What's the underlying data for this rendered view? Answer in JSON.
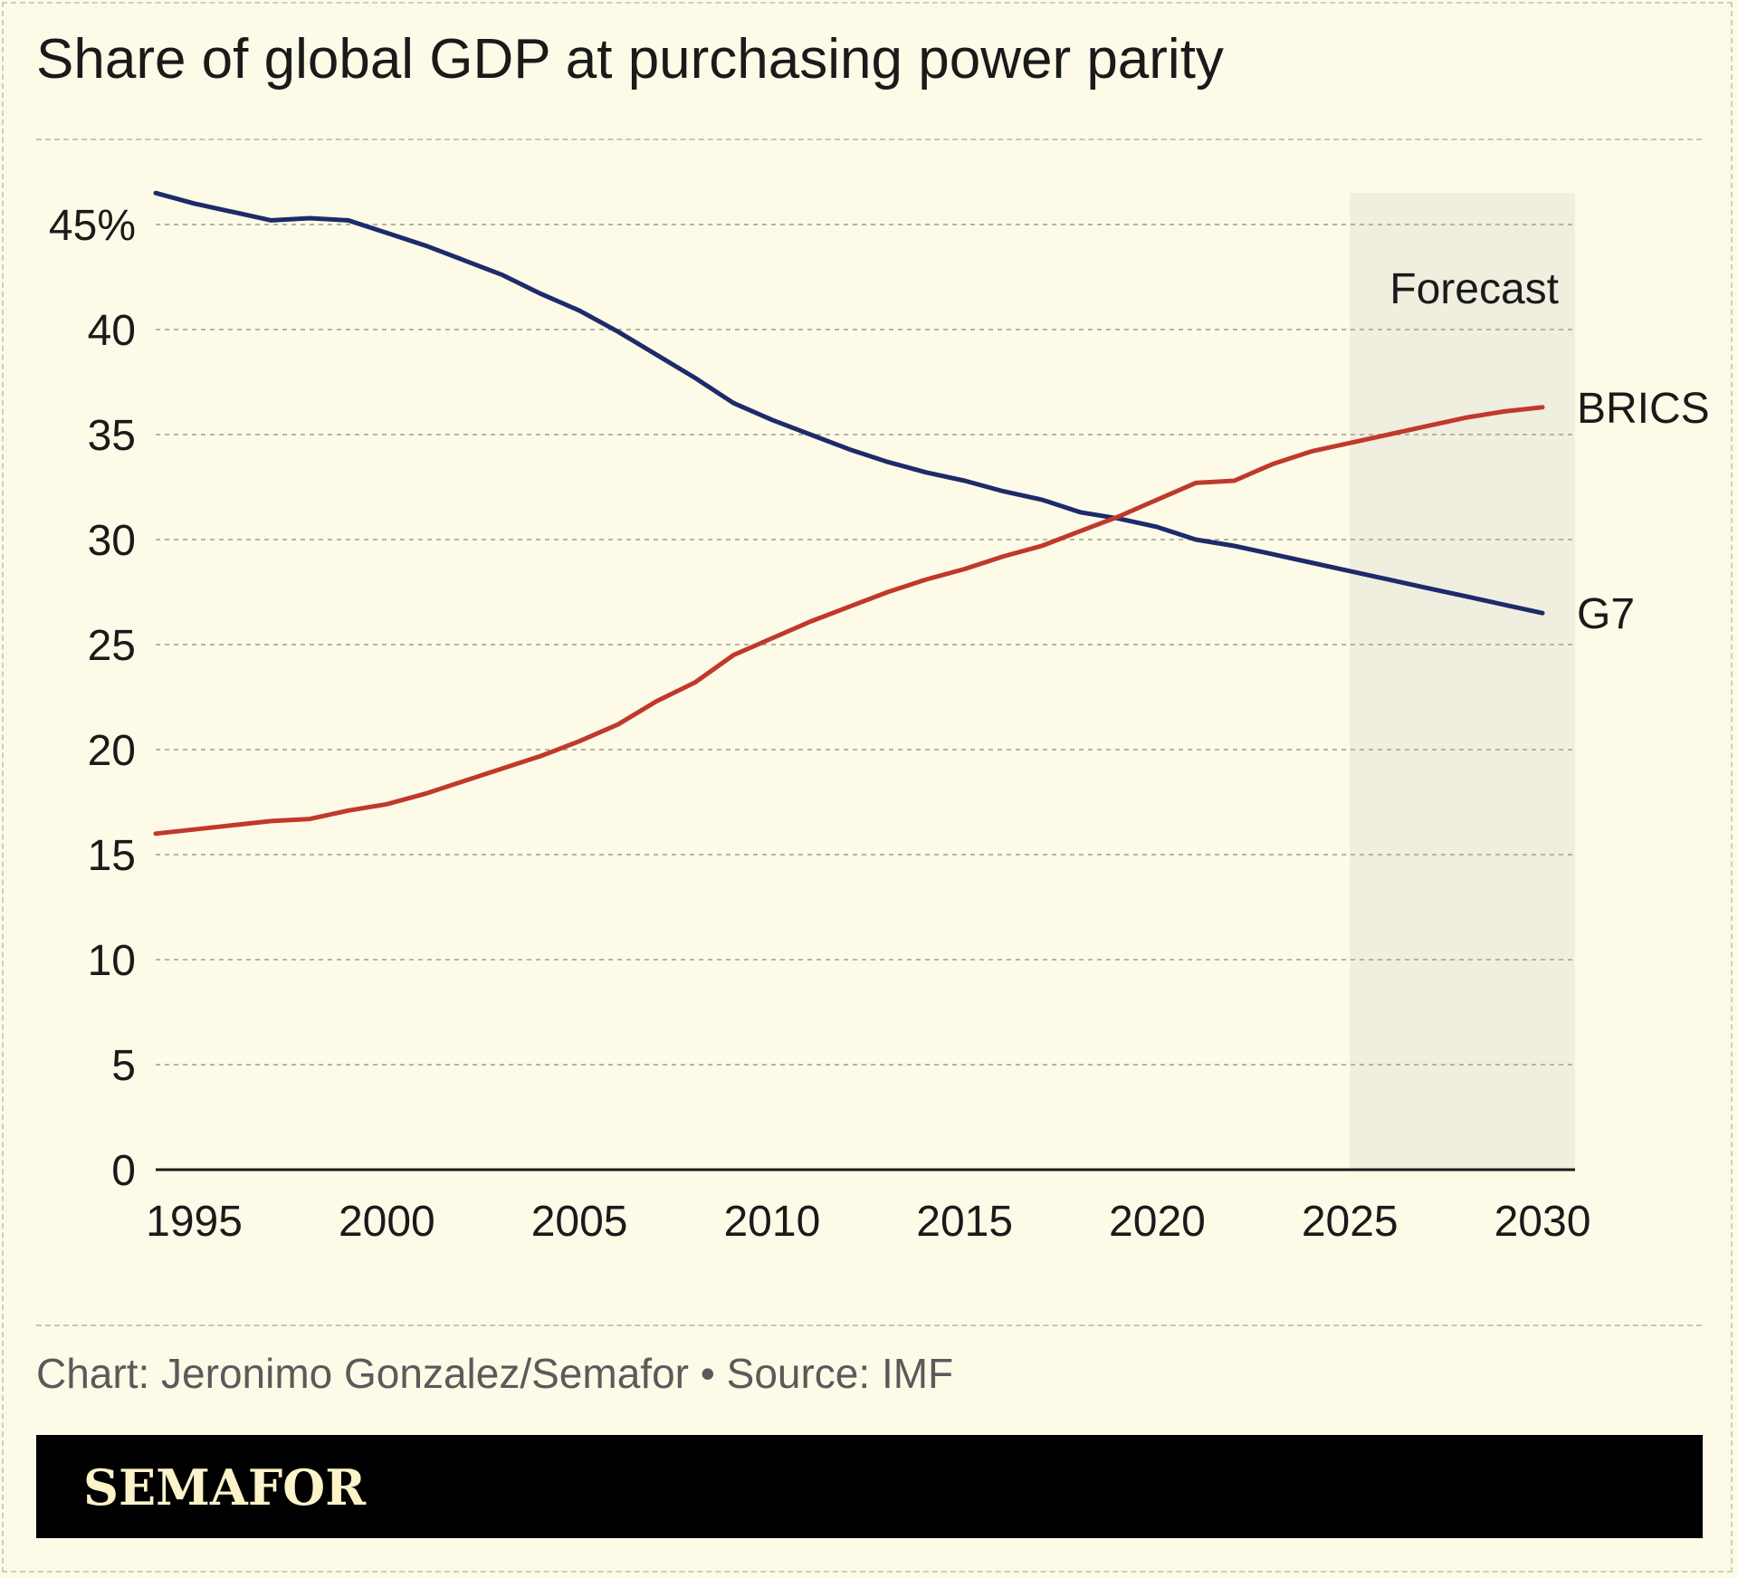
{
  "title": "Share of global GDP at purchasing power parity",
  "credit": "Chart: Jeronimo Gonzalez/Semafor • Source: IMF",
  "brand": "SEMAFOR",
  "colors": {
    "background": "#fdfbe8",
    "forecast_band": "#f0eedf",
    "g7": "#1f2a6b",
    "brics": "#c0392b",
    "axis": "#1a1a1a",
    "grid": "#b5b3a3"
  },
  "chart_data": {
    "type": "line",
    "xlim": [
      1994,
      2030
    ],
    "ylim": [
      0,
      46.5
    ],
    "y_ticks": [
      0,
      5,
      10,
      15,
      20,
      25,
      30,
      35,
      40,
      45
    ],
    "y_tick_labels": [
      "0",
      "5",
      "10",
      "15",
      "20",
      "25",
      "30",
      "35",
      "40",
      "45%"
    ],
    "x_ticks": [
      1995,
      2000,
      2005,
      2010,
      2015,
      2020,
      2025,
      2030
    ],
    "x_tick_labels": [
      "1995",
      "2000",
      "2005",
      "2010",
      "2015",
      "2020",
      "2025",
      "2030"
    ],
    "grid": true,
    "forecast": {
      "label": "Forecast",
      "start": 2025,
      "end": 2030
    },
    "x": [
      1994,
      1995,
      1996,
      1997,
      1998,
      1999,
      2000,
      2001,
      2002,
      2003,
      2004,
      2005,
      2006,
      2007,
      2008,
      2009,
      2010,
      2011,
      2012,
      2013,
      2014,
      2015,
      2016,
      2017,
      2018,
      2019,
      2020,
      2021,
      2022,
      2023,
      2024,
      2025,
      2026,
      2027,
      2028,
      2029,
      2030
    ],
    "series": [
      {
        "name": "G7",
        "color": "#1f2a6b",
        "values": [
          46.5,
          46.0,
          45.6,
          45.2,
          45.3,
          45.2,
          44.6,
          44.0,
          43.3,
          42.6,
          41.7,
          40.9,
          39.9,
          38.8,
          37.7,
          36.5,
          35.7,
          35.0,
          34.3,
          33.7,
          33.2,
          32.8,
          32.3,
          31.9,
          31.3,
          31.0,
          30.6,
          30.0,
          29.7,
          29.3,
          28.9,
          28.5,
          28.1,
          27.7,
          27.3,
          26.9,
          26.5
        ]
      },
      {
        "name": "BRICS",
        "color": "#c0392b",
        "values": [
          16.0,
          16.2,
          16.4,
          16.6,
          16.7,
          17.1,
          17.4,
          17.9,
          18.5,
          19.1,
          19.7,
          20.4,
          21.2,
          22.3,
          23.2,
          24.5,
          25.3,
          26.1,
          26.8,
          27.5,
          28.1,
          28.6,
          29.2,
          29.7,
          30.4,
          31.1,
          31.9,
          32.7,
          32.8,
          33.6,
          34.2,
          34.6,
          35.0,
          35.4,
          35.8,
          36.1,
          36.3
        ]
      }
    ]
  }
}
